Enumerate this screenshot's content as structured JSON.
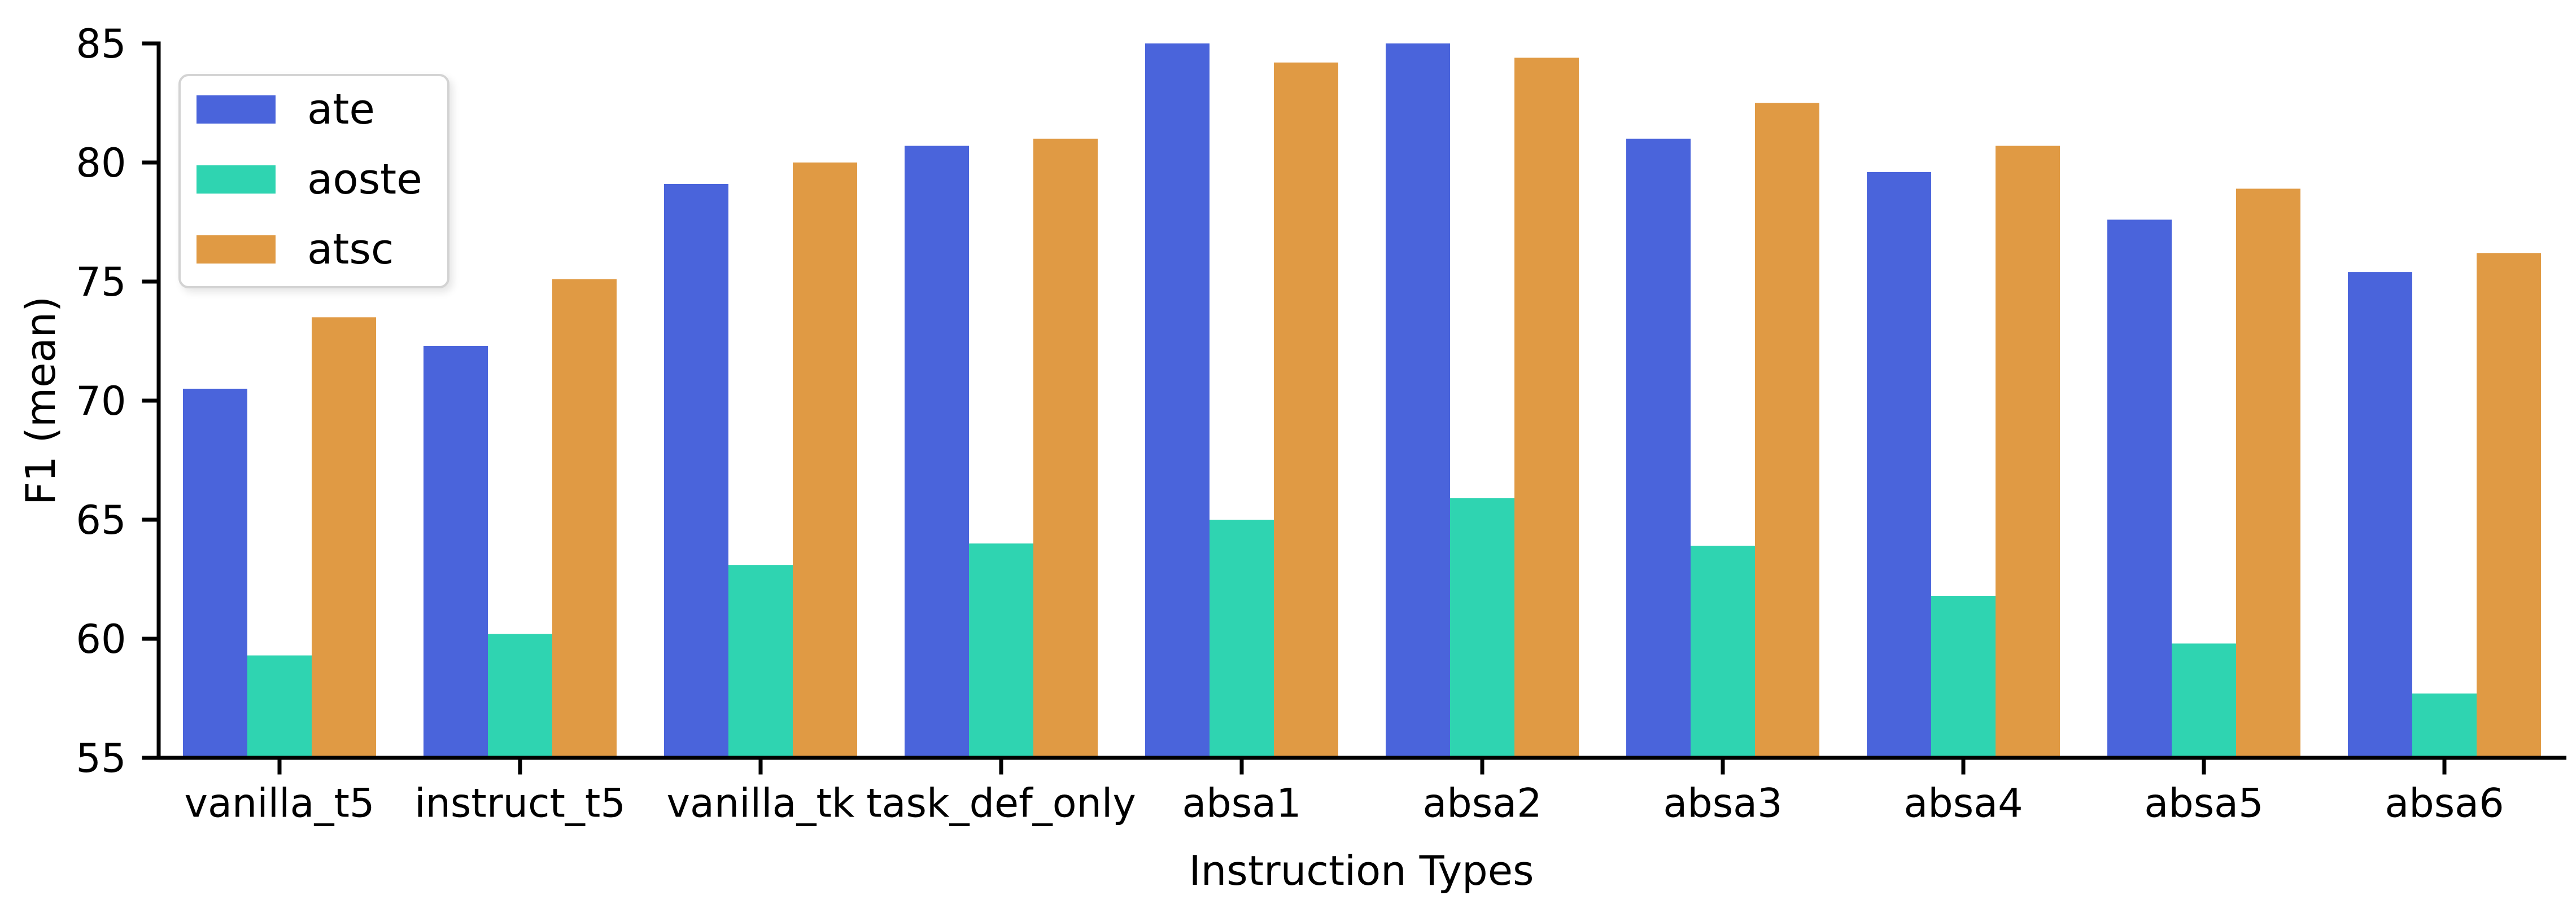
{
  "chart_data": {
    "type": "bar",
    "title": "",
    "xlabel": "Instruction Types",
    "ylabel": "F1 (mean)",
    "categories": [
      "vanilla_t5",
      "instruct_t5",
      "vanilla_tk",
      "task_def_only",
      "absa1",
      "absa2",
      "absa3",
      "absa4",
      "absa5",
      "absa6"
    ],
    "series": [
      {
        "name": "ate",
        "color": "#4a64db",
        "values": [
          70.5,
          72.3,
          79.1,
          80.7,
          85.0,
          85.0,
          81.0,
          79.6,
          77.6,
          75.4
        ]
      },
      {
        "name": "aoste",
        "color": "#2fd4b1",
        "values": [
          59.3,
          60.2,
          63.1,
          64.0,
          65.0,
          65.9,
          63.9,
          61.8,
          59.8,
          57.7
        ]
      },
      {
        "name": "atsc",
        "color": "#e09a44",
        "values": [
          73.5,
          75.1,
          80.0,
          81.0,
          84.2,
          84.4,
          82.5,
          80.7,
          78.9,
          76.2
        ]
      }
    ],
    "ylim": [
      55,
      85
    ],
    "yticks": [
      55,
      60,
      65,
      70,
      75,
      80,
      85
    ],
    "grid": false,
    "legend_position": "upper left",
    "axis_color": "#000000",
    "background_color": "#ffffff"
  }
}
